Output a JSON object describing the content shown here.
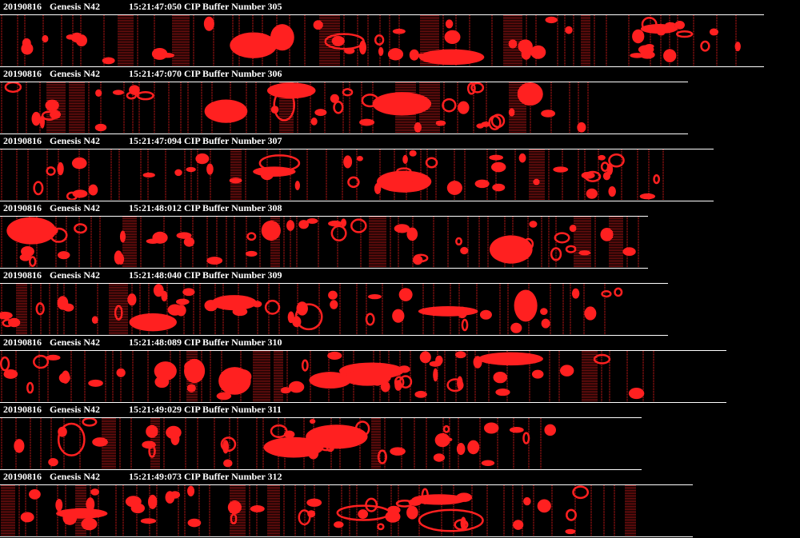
{
  "strips": [
    {
      "date": "20190816",
      "probe": "Genesis N42",
      "time": "15:21:47:050",
      "label": "CIP Buffer Number 305",
      "seed": 305
    },
    {
      "date": "20190816",
      "probe": "Genesis N42",
      "time": "15:21:47:070",
      "label": "CIP Buffer Number 306",
      "seed": 306
    },
    {
      "date": "20190816",
      "probe": "Genesis N42",
      "time": "15:21:47:094",
      "label": "CIP Buffer Number 307",
      "seed": 307
    },
    {
      "date": "20190816",
      "probe": "Genesis N42",
      "time": "15:21:48:012",
      "label": "CIP Buffer Number 308",
      "seed": 308
    },
    {
      "date": "20190816",
      "probe": "Genesis N42",
      "time": "15:21:48:040",
      "label": "CIP Buffer Number 309",
      "seed": 309
    },
    {
      "date": "20190816",
      "probe": "Genesis N42",
      "time": "15:21:48:089",
      "label": "CIP Buffer Number 310",
      "seed": 310
    },
    {
      "date": "20190816",
      "probe": "Genesis N42",
      "time": "15:21:49:029",
      "label": "CIP Buffer Number 311",
      "seed": 311
    },
    {
      "date": "20190816",
      "probe": "Genesis N42",
      "time": "15:21:49:073",
      "label": "CIP Buffer Number 312",
      "seed": 312
    }
  ],
  "colors": {
    "background": "#000000",
    "particle": "#ff2020",
    "text": "#ffffff"
  }
}
